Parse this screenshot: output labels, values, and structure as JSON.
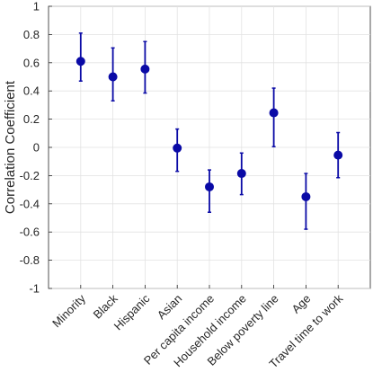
{
  "chart_data": {
    "type": "scatter",
    "subtype": "point-with-error-bars",
    "title": "",
    "xlabel": "",
    "ylabel": "Correlation Coefficient",
    "ylim": [
      -1,
      1
    ],
    "yticks": [
      -1,
      -0.8,
      -0.6,
      -0.4,
      -0.2,
      0,
      0.2,
      0.4,
      0.6,
      0.8,
      1
    ],
    "ytick_labels": [
      "-1",
      "-0.8",
      "-0.6",
      "-0.4",
      "-0.2",
      "0",
      "0.2",
      "0.4",
      "0.6",
      "0.8",
      "1"
    ],
    "grid": true,
    "categories": [
      "Minority",
      "Black",
      "Hispanic",
      "Asian",
      "Per capita income",
      "Household income",
      "Below poverty line",
      "Age",
      "Travel time to work"
    ],
    "values": [
      0.61,
      0.5,
      0.555,
      -0.005,
      -0.28,
      -0.185,
      0.245,
      -0.35,
      -0.055
    ],
    "lower": [
      0.47,
      0.33,
      0.385,
      -0.17,
      -0.46,
      -0.335,
      0.005,
      -0.58,
      -0.215
    ],
    "upper": [
      0.81,
      0.705,
      0.75,
      0.13,
      -0.16,
      -0.04,
      0.42,
      -0.185,
      0.105
    ],
    "colors": {
      "marker": "#0a0aa6",
      "grid": "#e2e2e2",
      "axis": "#262626"
    }
  }
}
